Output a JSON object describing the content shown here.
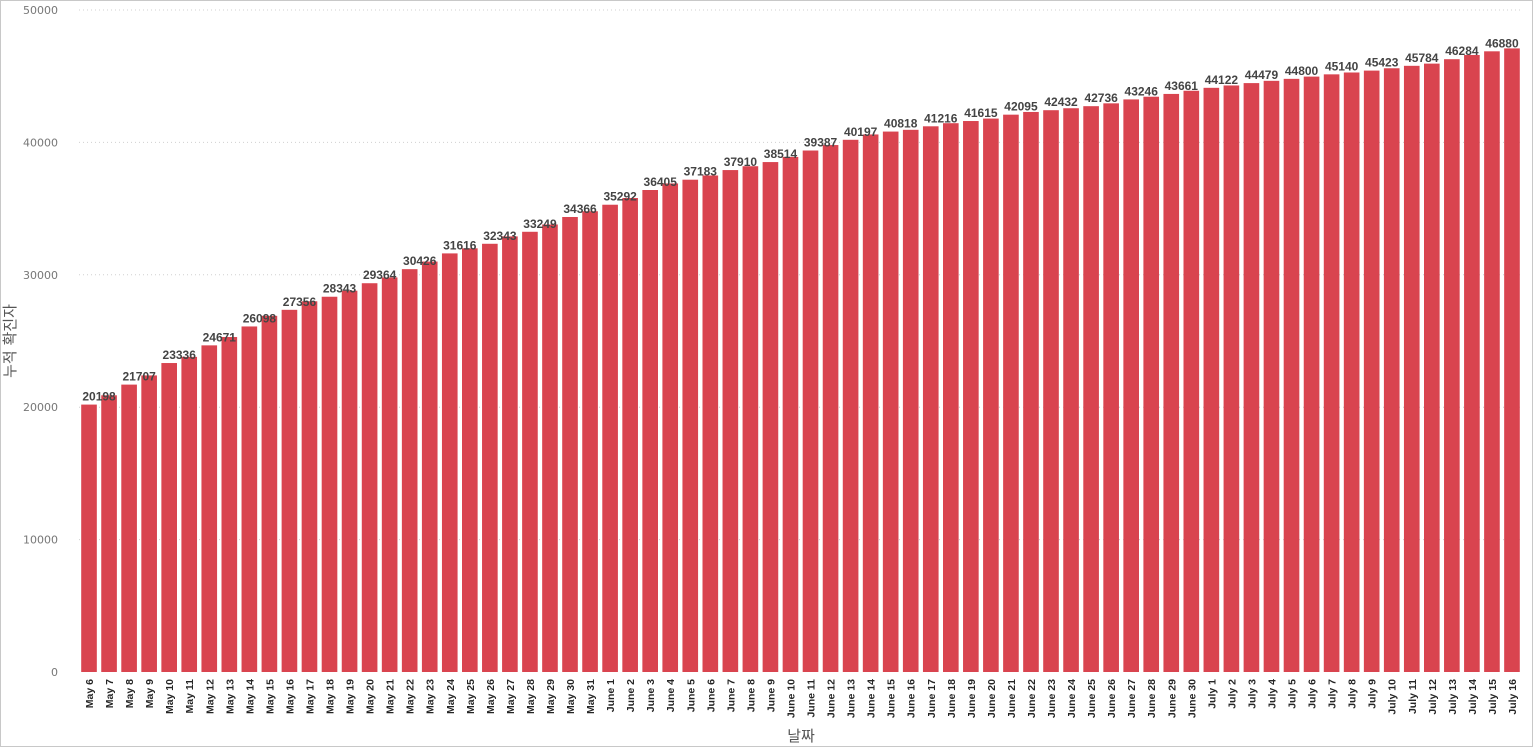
{
  "chart_data": {
    "type": "bar",
    "xlabel": "날짜",
    "ylabel": "누적 확진자",
    "ylim": [
      0,
      50000
    ],
    "yticks": [
      0,
      10000,
      20000,
      30000,
      40000,
      50000
    ],
    "grid": true,
    "bar_color": "#D9444F",
    "categories": [
      "May 6",
      "May 7",
      "May 8",
      "May 9",
      "May 10",
      "May 11",
      "May 12",
      "May 13",
      "May 14",
      "May 15",
      "May 16",
      "May 17",
      "May 18",
      "May 19",
      "May 20",
      "May 21",
      "May 22",
      "May 23",
      "May 24",
      "May 25",
      "May 26",
      "May 27",
      "May 28",
      "May 29",
      "May 30",
      "May 31",
      "June 1",
      "June 2",
      "June 3",
      "June 4",
      "June 5",
      "June 6",
      "June 7",
      "June 8",
      "June 9",
      "June 10",
      "June 11",
      "June 12",
      "June 13",
      "June 14",
      "June 15",
      "June 16",
      "June 17",
      "June 18",
      "June 19",
      "June 20",
      "June 21",
      "June 22",
      "June 23",
      "June 24",
      "June 25",
      "June 26",
      "June 27",
      "June 28",
      "June 29",
      "June 30",
      "July 1",
      "July 2",
      "July 3",
      "July 4",
      "July 5",
      "July 6",
      "July 7",
      "July 8",
      "July 9",
      "July 10",
      "July 11",
      "July 12",
      "July 13",
      "July 14",
      "July 15",
      "July 16"
    ],
    "values": [
      20198,
      20900,
      21707,
      22400,
      23336,
      23800,
      24671,
      25300,
      26098,
      26900,
      27356,
      28000,
      28343,
      28800,
      29364,
      29800,
      30426,
      31000,
      31616,
      32000,
      32343,
      32900,
      33249,
      33800,
      34366,
      34800,
      35292,
      35800,
      36405,
      36900,
      37183,
      37500,
      37910,
      38200,
      38514,
      38900,
      39387,
      39800,
      40197,
      40600,
      40818,
      40950,
      41216,
      41450,
      41615,
      41800,
      42095,
      42300,
      42432,
      42580,
      42736,
      42950,
      43246,
      43450,
      43661,
      43900,
      44122,
      44300,
      44479,
      44650,
      44800,
      44970,
      45140,
      45280,
      45423,
      45600,
      45784,
      45950,
      46284,
      46600,
      46880,
      47100
    ],
    "data_labels": [
      "20198",
      "",
      "21707",
      "",
      "23336",
      "",
      "24671",
      "",
      "26098",
      "",
      "27356",
      "",
      "28343",
      "",
      "29364",
      "",
      "30426",
      "",
      "31616",
      "",
      "32343",
      "",
      "33249",
      "",
      "34366",
      "",
      "35292",
      "",
      "36405",
      "",
      "37183",
      "",
      "37910",
      "",
      "38514",
      "",
      "39387",
      "",
      "40197",
      "",
      "40818",
      "",
      "41216",
      "",
      "41615",
      "",
      "42095",
      "",
      "42432",
      "",
      "42736",
      "",
      "43246",
      "",
      "43661",
      "",
      "44122",
      "",
      "44479",
      "",
      "44800",
      "",
      "45140",
      "",
      "45423",
      "",
      "45784",
      "",
      "46284",
      "",
      "46880",
      ""
    ]
  }
}
